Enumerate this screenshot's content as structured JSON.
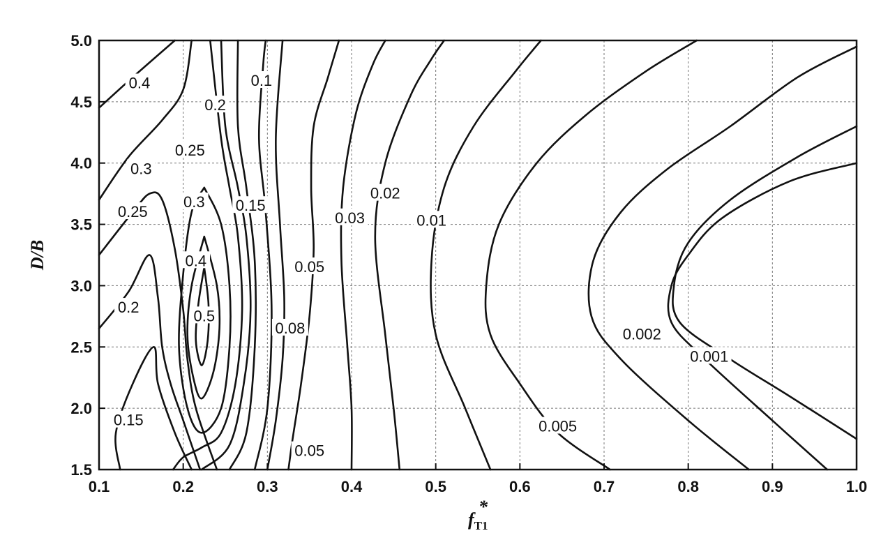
{
  "chart_data": {
    "type": "contour",
    "title": "",
    "xlabel": "f",
    "xlabel_sub": "T1",
    "xlabel_sup": "*",
    "ylabel": "D/B",
    "xlim": [
      0.1,
      1.0
    ],
    "ylim": [
      1.5,
      5.0
    ],
    "x_ticks": [
      "0.1",
      "0.2",
      "0.3",
      "0.4",
      "0.5",
      "0.6",
      "0.7",
      "0.8",
      "0.9",
      "1.0"
    ],
    "y_ticks": [
      "1.5",
      "2.0",
      "2.5",
      "3.0",
      "3.5",
      "4.0",
      "4.5",
      "5.0"
    ],
    "grid": true,
    "contours": [
      {
        "level": "0.4",
        "label_at": [
          0.148,
          4.65
        ],
        "points": [
          [
            0.1,
            4.45
          ],
          [
            0.14,
            4.7
          ],
          [
            0.19,
            5.0
          ]
        ]
      },
      {
        "level": "0.3",
        "label_at": [
          0.15,
          3.95
        ],
        "points": [
          [
            0.1,
            3.7
          ],
          [
            0.135,
            4.05
          ],
          [
            0.175,
            4.35
          ],
          [
            0.2,
            4.6
          ],
          [
            0.21,
            5.0
          ]
        ]
      },
      {
        "level": "0.25",
        "label_at": [
          0.14,
          3.6
        ],
        "points": [
          [
            0.1,
            3.25
          ],
          [
            0.14,
            3.6
          ],
          [
            0.16,
            3.75
          ],
          [
            0.175,
            3.7
          ],
          [
            0.19,
            3.3
          ],
          [
            0.2,
            2.8
          ],
          [
            0.205,
            2.4
          ],
          [
            0.215,
            2.0
          ],
          [
            0.24,
            1.5
          ]
        ]
      },
      {
        "level": "0.2",
        "label_at": [
          0.135,
          2.82
        ],
        "points": [
          [
            0.1,
            2.65
          ],
          [
            0.135,
            2.95
          ],
          [
            0.16,
            3.25
          ],
          [
            0.17,
            2.9
          ],
          [
            0.175,
            2.5
          ],
          [
            0.185,
            2.2
          ],
          [
            0.2,
            1.9
          ],
          [
            0.22,
            1.5
          ]
        ]
      },
      {
        "level": "0.15",
        "label_at": [
          0.135,
          1.9
        ],
        "points": [
          [
            0.125,
            1.5
          ],
          [
            0.12,
            1.8
          ],
          [
            0.14,
            2.2
          ],
          [
            0.165,
            2.5
          ],
          [
            0.17,
            2.2
          ],
          [
            0.19,
            1.8
          ],
          [
            0.21,
            1.5
          ]
        ]
      },
      {
        "level": "0.5",
        "label_at": [
          0.225,
          2.75
        ],
        "points": [
          [
            0.225,
            3.15
          ],
          [
            0.218,
            2.85
          ],
          [
            0.215,
            2.55
          ],
          [
            0.222,
            2.35
          ],
          [
            0.229,
            2.55
          ],
          [
            0.23,
            2.85
          ],
          [
            0.225,
            3.15
          ]
        ]
      },
      {
        "level": "0.4",
        "label_at": [
          0.215,
          3.2
        ],
        "points": [
          [
            0.225,
            3.4
          ],
          [
            0.21,
            3.0
          ],
          [
            0.205,
            2.6
          ],
          [
            0.212,
            2.25
          ],
          [
            0.222,
            2.08
          ],
          [
            0.236,
            2.3
          ],
          [
            0.243,
            2.65
          ],
          [
            0.24,
            3.0
          ],
          [
            0.225,
            3.4
          ]
        ]
      },
      {
        "level": "0.3",
        "label_at": [
          0.213,
          3.68
        ],
        "points": [
          [
            0.225,
            3.8
          ],
          [
            0.21,
            3.6
          ],
          [
            0.2,
            3.1
          ],
          [
            0.195,
            2.5
          ],
          [
            0.205,
            2.0
          ],
          [
            0.222,
            1.8
          ],
          [
            0.245,
            2.0
          ],
          [
            0.255,
            2.5
          ],
          [
            0.255,
            3.0
          ],
          [
            0.245,
            3.5
          ],
          [
            0.225,
            3.8
          ]
        ]
      },
      {
        "level": "0.25",
        "label_at": [
          0.208,
          4.1
        ],
        "points": [
          [
            0.188,
            1.5
          ],
          [
            0.2,
            1.6
          ],
          [
            0.222,
            1.68
          ],
          [
            0.245,
            1.8
          ],
          [
            0.262,
            2.2
          ],
          [
            0.27,
            2.8
          ],
          [
            0.265,
            3.4
          ],
          [
            0.255,
            3.8
          ],
          [
            0.245,
            4.2
          ],
          [
            0.232,
            5.0
          ]
        ]
      },
      {
        "level": "0.2",
        "label_at": [
          0.238,
          4.47
        ],
        "points": [
          [
            0.222,
            1.5
          ],
          [
            0.255,
            1.7
          ],
          [
            0.272,
            2.2
          ],
          [
            0.28,
            2.8
          ],
          [
            0.275,
            3.4
          ],
          [
            0.265,
            3.8
          ],
          [
            0.25,
            4.3
          ],
          [
            0.245,
            5.0
          ]
        ]
      },
      {
        "level": "0.15",
        "label_at": [
          0.28,
          3.65
        ],
        "points": [
          [
            0.255,
            1.5
          ],
          [
            0.275,
            1.8
          ],
          [
            0.285,
            2.5
          ],
          [
            0.285,
            3.2
          ],
          [
            0.275,
            3.8
          ],
          [
            0.265,
            4.3
          ],
          [
            0.265,
            5.0
          ]
        ]
      },
      {
        "level": "0.1",
        "label_at": [
          0.293,
          4.67
        ],
        "points": [
          [
            0.285,
            1.5
          ],
          [
            0.3,
            2.0
          ],
          [
            0.305,
            2.8
          ],
          [
            0.298,
            3.6
          ],
          [
            0.29,
            4.2
          ],
          [
            0.295,
            4.8
          ],
          [
            0.298,
            5.0
          ]
        ]
      },
      {
        "level": "0.08",
        "label_at": [
          0.327,
          2.65
        ],
        "points": [
          [
            0.3,
            1.5
          ],
          [
            0.31,
            1.9
          ],
          [
            0.318,
            2.4
          ],
          [
            0.32,
            2.9
          ],
          [
            0.315,
            3.5
          ],
          [
            0.31,
            4.2
          ],
          [
            0.318,
            5.0
          ]
        ]
      },
      {
        "level": "0.05",
        "label_at": [
          0.35,
          3.15
        ],
        "points": [
          [
            0.325,
            1.5
          ],
          [
            0.33,
            1.75
          ],
          [
            0.34,
            2.2
          ],
          [
            0.35,
            2.75
          ],
          [
            0.355,
            3.3
          ],
          [
            0.352,
            3.8
          ],
          [
            0.355,
            4.3
          ],
          [
            0.372,
            4.7
          ],
          [
            0.385,
            5.0
          ]
        ]
      },
      {
        "level": "0.05",
        "label_at": [
          0.35,
          1.65
        ],
        "points": []
      },
      {
        "level": "0.03",
        "label_at": [
          0.398,
          3.55
        ],
        "points": [
          [
            0.4,
            1.5
          ],
          [
            0.4,
            2.0
          ],
          [
            0.395,
            2.5
          ],
          [
            0.388,
            3.2
          ],
          [
            0.39,
            3.8
          ],
          [
            0.405,
            4.4
          ],
          [
            0.425,
            4.8
          ],
          [
            0.44,
            5.0
          ]
        ]
      },
      {
        "level": "0.02",
        "label_at": [
          0.44,
          3.75
        ],
        "points": [
          [
            0.457,
            1.5
          ],
          [
            0.45,
            2.0
          ],
          [
            0.44,
            2.6
          ],
          [
            0.428,
            3.4
          ],
          [
            0.44,
            4.0
          ],
          [
            0.47,
            4.55
          ],
          [
            0.495,
            4.85
          ],
          [
            0.51,
            5.0
          ]
        ]
      },
      {
        "level": "0.01",
        "label_at": [
          0.495,
          3.53
        ],
        "points": [
          [
            0.565,
            1.5
          ],
          [
            0.535,
            2.0
          ],
          [
            0.5,
            2.6
          ],
          [
            0.495,
            3.2
          ],
          [
            0.51,
            3.8
          ],
          [
            0.545,
            4.3
          ],
          [
            0.595,
            4.75
          ],
          [
            0.625,
            5.0
          ]
        ]
      },
      {
        "level": "0.005",
        "label_at": [
          0.645,
          1.85
        ],
        "points": [
          [
            0.707,
            1.5
          ],
          [
            0.645,
            1.8
          ],
          [
            0.6,
            2.2
          ],
          [
            0.565,
            2.6
          ],
          [
            0.56,
            3.0
          ],
          [
            0.575,
            3.5
          ],
          [
            0.62,
            4.0
          ],
          [
            0.68,
            4.4
          ],
          [
            0.75,
            4.75
          ],
          [
            0.81,
            5.0
          ]
        ]
      },
      {
        "level": "0.002",
        "label_at": [
          0.745,
          2.6
        ],
        "points": [
          [
            0.872,
            1.5
          ],
          [
            0.8,
            1.9
          ],
          [
            0.72,
            2.4
          ],
          [
            0.685,
            2.75
          ],
          [
            0.687,
            3.2
          ],
          [
            0.72,
            3.6
          ],
          [
            0.775,
            3.95
          ],
          [
            0.85,
            4.3
          ],
          [
            0.93,
            4.7
          ],
          [
            1.0,
            4.95
          ]
        ]
      },
      {
        "level": "0.001",
        "label_at": [
          0.825,
          2.42
        ],
        "points": [
          [
            1.0,
            1.75
          ],
          [
            0.92,
            2.1
          ],
          [
            0.85,
            2.4
          ],
          [
            0.79,
            2.7
          ],
          [
            0.783,
            3.0
          ],
          [
            0.8,
            3.35
          ],
          [
            0.85,
            3.7
          ],
          [
            0.93,
            4.05
          ],
          [
            1.0,
            4.3
          ]
        ]
      },
      {
        "level": "",
        "label_at": null,
        "points": [
          [
            0.965,
            1.5
          ],
          [
            0.9,
            1.9
          ],
          [
            0.82,
            2.4
          ],
          [
            0.78,
            2.7
          ],
          [
            0.78,
            3.0
          ],
          [
            0.8,
            3.25
          ],
          [
            0.84,
            3.55
          ],
          [
            0.92,
            3.85
          ],
          [
            1.0,
            4.0
          ]
        ]
      }
    ]
  }
}
